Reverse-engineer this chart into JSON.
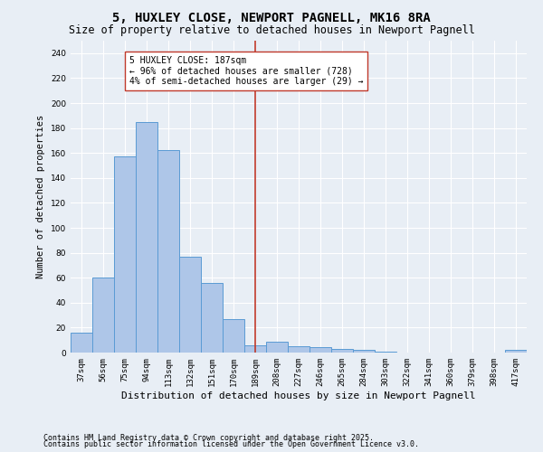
{
  "title1": "5, HUXLEY CLOSE, NEWPORT PAGNELL, MK16 8RA",
  "title2": "Size of property relative to detached houses in Newport Pagnell",
  "xlabel": "Distribution of detached houses by size in Newport Pagnell",
  "ylabel": "Number of detached properties",
  "bar_color": "#aec6e8",
  "bar_edge_color": "#5a9bd4",
  "categories": [
    "37sqm",
    "56sqm",
    "75sqm",
    "94sqm",
    "113sqm",
    "132sqm",
    "151sqm",
    "170sqm",
    "189sqm",
    "208sqm",
    "227sqm",
    "246sqm",
    "265sqm",
    "284sqm",
    "303sqm",
    "322sqm",
    "341sqm",
    "360sqm",
    "379sqm",
    "398sqm",
    "417sqm"
  ],
  "values": [
    16,
    60,
    157,
    185,
    162,
    77,
    56,
    27,
    6,
    9,
    5,
    4,
    3,
    2,
    1,
    0,
    0,
    0,
    0,
    0,
    2
  ],
  "vline_x": 8,
  "vline_color": "#c0392b",
  "annotation_text": "5 HUXLEY CLOSE: 187sqm\n← 96% of detached houses are smaller (728)\n4% of semi-detached houses are larger (29) →",
  "annotation_box_color": "#ffffff",
  "annotation_box_edge": "#c0392b",
  "ylim": [
    0,
    250
  ],
  "yticks": [
    0,
    20,
    40,
    60,
    80,
    100,
    120,
    140,
    160,
    180,
    200,
    220,
    240
  ],
  "background_color": "#e8eef5",
  "grid_color": "#ffffff",
  "footer1": "Contains HM Land Registry data © Crown copyright and database right 2025.",
  "footer2": "Contains public sector information licensed under the Open Government Licence v3.0.",
  "title1_fontsize": 10,
  "title2_fontsize": 8.5,
  "tick_fontsize": 6.5,
  "ylabel_fontsize": 7.5,
  "xlabel_fontsize": 8,
  "annotation_fontsize": 7,
  "footer_fontsize": 6
}
